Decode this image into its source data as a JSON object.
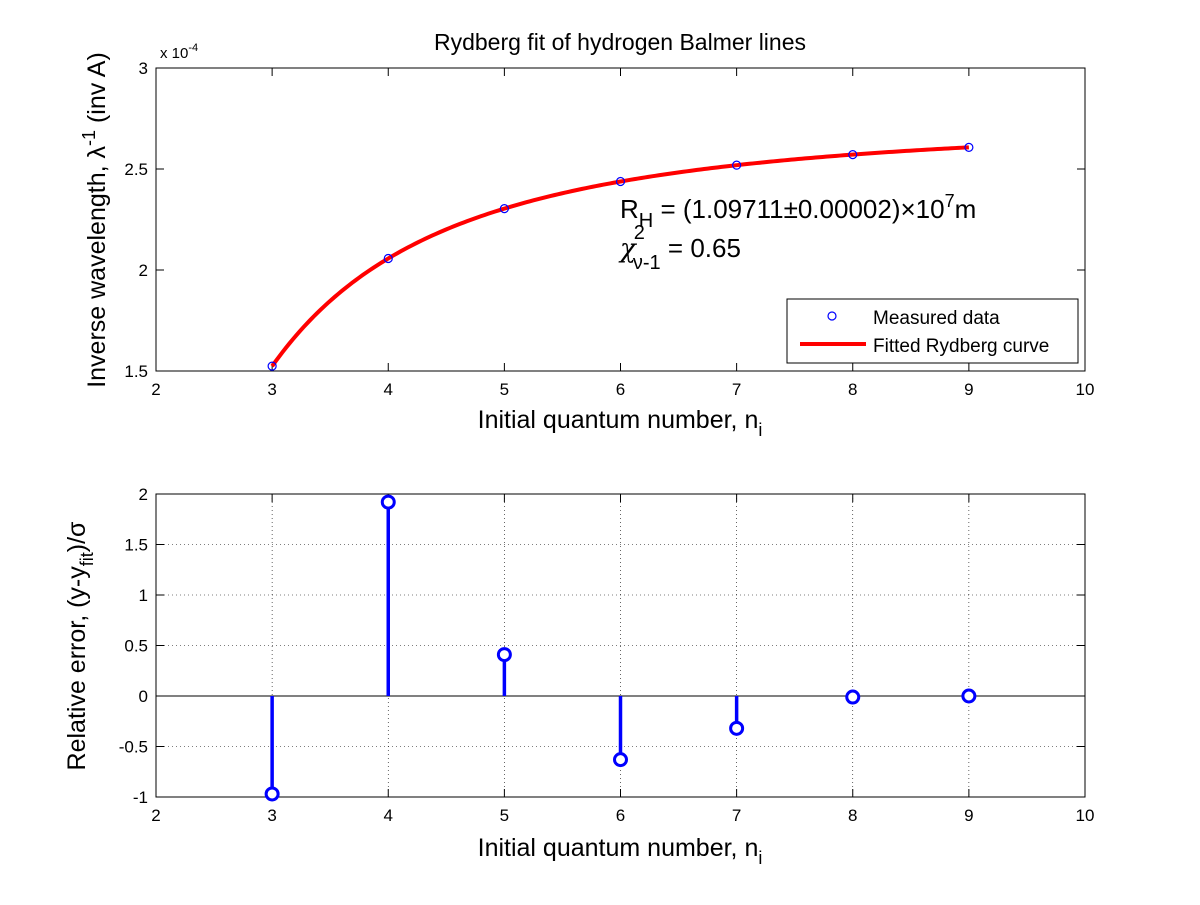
{
  "chart_data": [
    {
      "type": "line",
      "title": "Rydberg fit of hydrogen Balmer lines",
      "xlabel": "Initial quantum number, n",
      "xlabel_sub": "i",
      "ylabel": "Inverse wavelength, λ",
      "ylabel_sup": "-1",
      "ylabel_suffix": " (inv A)",
      "y_multiplier_base": "x 10",
      "y_multiplier_exp": "-4",
      "xlim": [
        2,
        10
      ],
      "ylim": [
        1.5,
        3
      ],
      "xticks": [
        "2",
        "3",
        "4",
        "5",
        "6",
        "7",
        "8",
        "9",
        "10"
      ],
      "yticks": [
        "1.5",
        "2",
        "2.5",
        "3"
      ],
      "grid": false,
      "legend_position": "bottom-right",
      "series": [
        {
          "name": "Measured data",
          "kind": "scatter",
          "marker": "circle",
          "color": "#0000ff",
          "x": [
            3,
            4,
            5,
            6,
            7,
            8,
            9
          ],
          "y": [
            1.524,
            2.057,
            2.304,
            2.438,
            2.519,
            2.571,
            2.607
          ]
        },
        {
          "name": "Fitted Rydberg curve",
          "kind": "line",
          "color": "#ff0000",
          "model": "R*(1/4 - 1/n^2)",
          "R": 10.9711,
          "x_range": [
            3,
            9
          ]
        }
      ],
      "annotation": {
        "rh_main": "R",
        "rh_sub": "H",
        "rh_value": " = (1.09711±0.00002)×10",
        "rh_exp": "7",
        "rh_unit": "m",
        "chi_main": "χ",
        "chi_sup": "2",
        "chi_sub": "ν-1",
        "chi_value": " = 0.65"
      }
    },
    {
      "type": "stem",
      "xlabel": "Initial quantum number, n",
      "xlabel_sub": "i",
      "ylabel": "Relative error, (y-y",
      "ylabel_sub": "fit",
      "ylabel_suffix": ")/σ",
      "xlim": [
        2,
        10
      ],
      "ylim": [
        -1,
        2
      ],
      "xticks": [
        "2",
        "3",
        "4",
        "5",
        "6",
        "7",
        "8",
        "9",
        "10"
      ],
      "yticks": [
        "-1",
        "-0.5",
        "0",
        "0.5",
        "1",
        "1.5",
        "2"
      ],
      "grid": true,
      "series": [
        {
          "color": "#0000ff",
          "x": [
            3,
            4,
            5,
            6,
            7,
            8,
            9
          ],
          "y": [
            -0.97,
            1.92,
            0.41,
            -0.63,
            -0.32,
            -0.01,
            0.0
          ]
        }
      ]
    }
  ]
}
